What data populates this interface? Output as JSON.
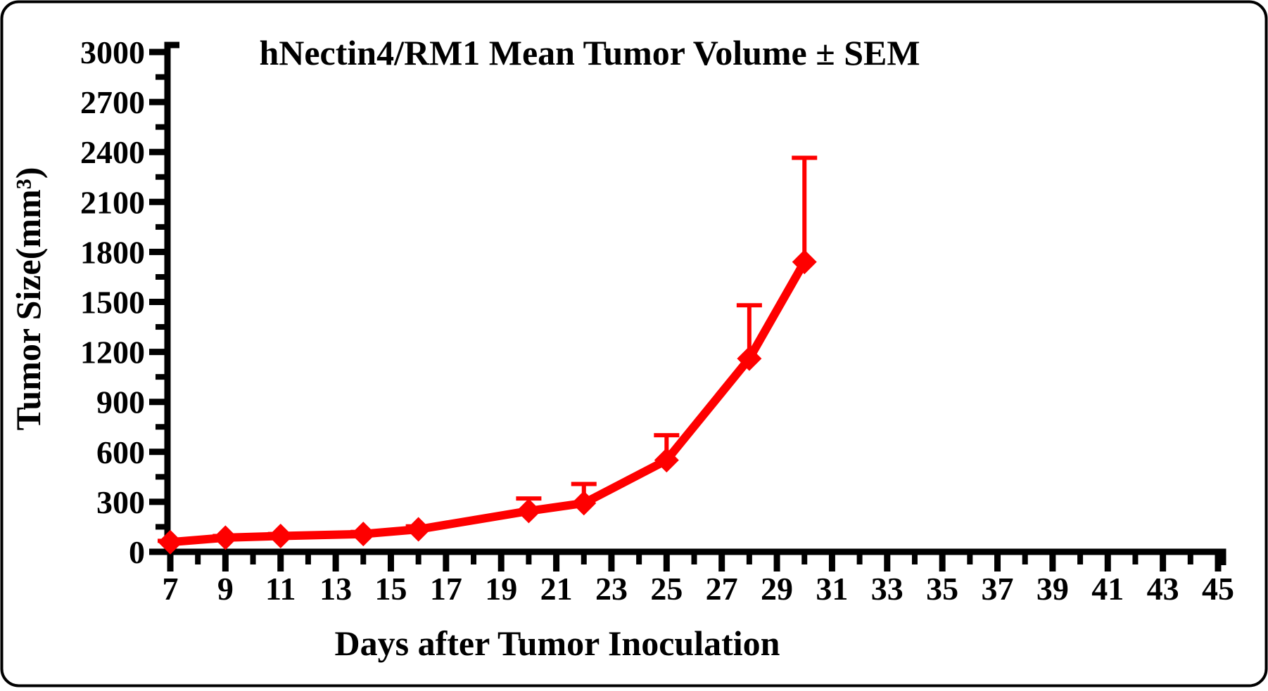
{
  "frame": {
    "background": "#ffffff",
    "border_color": "#000000",
    "axis_color": "#000000"
  },
  "chart_data": {
    "type": "line",
    "title": "hNectin4/RM1 Mean Tumor Volume ± SEM",
    "xlabel": "Days after Tumor Inoculation",
    "ylabel": "Tumor Size(mm³)",
    "legend": "none",
    "grid": false,
    "error_bars": "upper-only",
    "xlim": [
      7,
      45
    ],
    "ylim": [
      0,
      3000
    ],
    "x_major_ticks": [
      7,
      9,
      11,
      13,
      15,
      17,
      19,
      21,
      23,
      25,
      27,
      29,
      31,
      33,
      35,
      37,
      39,
      41,
      43,
      45
    ],
    "x_minor_ticks": [
      8,
      10,
      12,
      14,
      16,
      18,
      20,
      22,
      24,
      26,
      28,
      30,
      32,
      34,
      36,
      38,
      40,
      42,
      44
    ],
    "y_major_ticks": [
      0,
      300,
      600,
      900,
      1200,
      1500,
      1800,
      2100,
      2400,
      2700,
      3000
    ],
    "y_minor_step": 150,
    "series": [
      {
        "name": "hNectin4/RM1",
        "color": "#fe0000",
        "marker": "diamond",
        "x": [
          7,
          9,
          11,
          14,
          16,
          20,
          22,
          25,
          28,
          30
        ],
        "values": [
          58,
          85,
          95,
          107,
          135,
          245,
          292,
          550,
          1160,
          1740
        ],
        "sem_upper": [
          8,
          10,
          12,
          12,
          18,
          75,
          115,
          150,
          320,
          625
        ]
      }
    ]
  }
}
